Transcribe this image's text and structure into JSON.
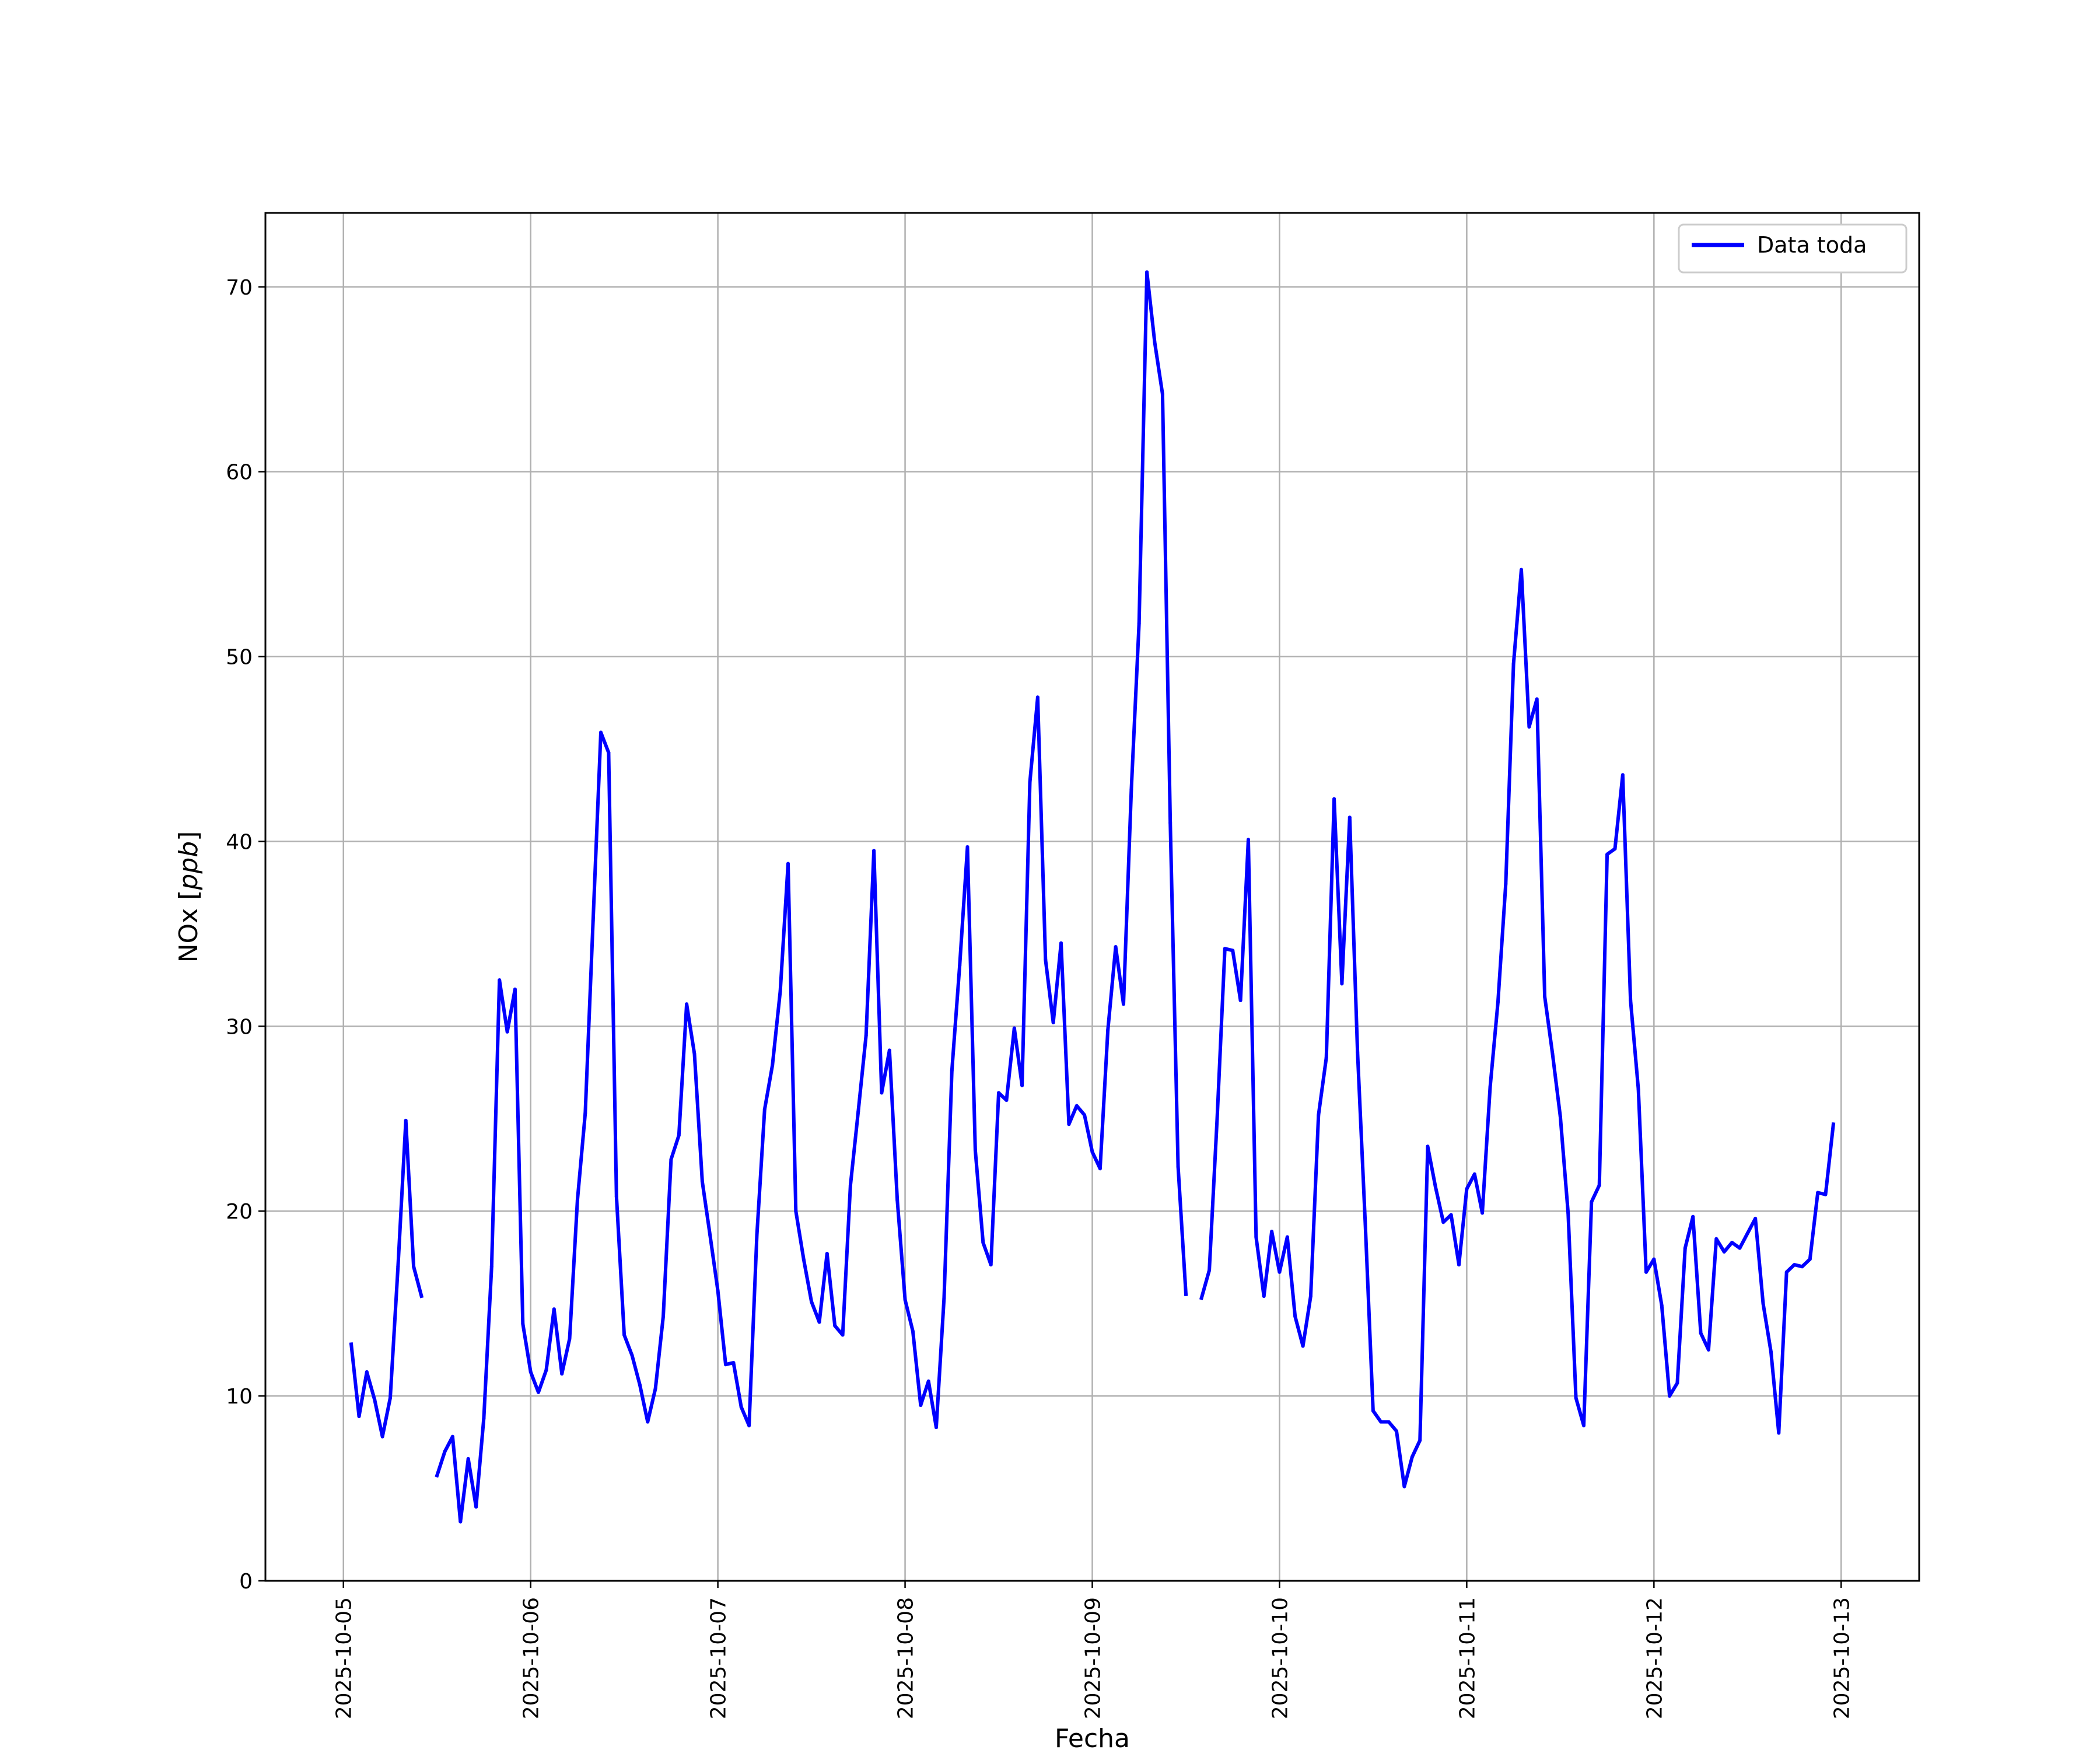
{
  "chart_data": {
    "type": "line",
    "xlabel": "Fecha",
    "ylabel": "NOx [ppb]",
    "ylabel_parts": {
      "main": "NOx [",
      "unit": "ppb",
      "end": "]"
    },
    "xlim": [
      "2025-10-04 14:00",
      "2025-10-13 10:00"
    ],
    "ylim": [
      0,
      74
    ],
    "x_tick_labels": [
      "2025-10-05",
      "2025-10-06",
      "2025-10-07",
      "2025-10-08",
      "2025-10-09",
      "2025-10-10",
      "2025-10-11",
      "2025-10-12",
      "2025-10-13"
    ],
    "y_ticks": [
      0,
      10,
      20,
      30,
      40,
      50,
      60,
      70
    ],
    "grid": true,
    "legend_position": "top-right",
    "line_color": "#0000ff",
    "series": [
      {
        "name": "Data toda",
        "points": [
          [
            "2025-10-05 01:00",
            12.8
          ],
          [
            "2025-10-05 02:00",
            8.9
          ],
          [
            "2025-10-05 03:00",
            11.3
          ],
          [
            "2025-10-05 04:00",
            9.8
          ],
          [
            "2025-10-05 05:00",
            7.8
          ],
          [
            "2025-10-05 06:00",
            9.9
          ],
          [
            "2025-10-05 07:00",
            17.0
          ],
          [
            "2025-10-05 08:00",
            24.9
          ],
          [
            "2025-10-05 09:00",
            17.0
          ],
          [
            "2025-10-05 10:00",
            15.4
          ],
          [
            "2025-10-05 11:00",
            null
          ],
          [
            "2025-10-05 12:00",
            5.7
          ],
          [
            "2025-10-05 13:00",
            7.0
          ],
          [
            "2025-10-05 14:00",
            7.8
          ],
          [
            "2025-10-05 15:00",
            3.2
          ],
          [
            "2025-10-05 16:00",
            6.6
          ],
          [
            "2025-10-05 17:00",
            4.0
          ],
          [
            "2025-10-05 18:00",
            8.8
          ],
          [
            "2025-10-05 19:00",
            17.0
          ],
          [
            "2025-10-05 20:00",
            32.5
          ],
          [
            "2025-10-05 21:00",
            29.7
          ],
          [
            "2025-10-05 22:00",
            32.0
          ],
          [
            "2025-10-05 23:00",
            13.9
          ],
          [
            "2025-10-06 00:00",
            11.3
          ],
          [
            "2025-10-06 01:00",
            10.2
          ],
          [
            "2025-10-06 02:00",
            11.4
          ],
          [
            "2025-10-06 03:00",
            14.7
          ],
          [
            "2025-10-06 04:00",
            11.2
          ],
          [
            "2025-10-06 05:00",
            13.1
          ],
          [
            "2025-10-06 06:00",
            20.6
          ],
          [
            "2025-10-06 07:00",
            25.3
          ],
          [
            "2025-10-06 08:00",
            35.7
          ],
          [
            "2025-10-06 09:00",
            45.9
          ],
          [
            "2025-10-06 10:00",
            44.8
          ],
          [
            "2025-10-06 11:00",
            20.8
          ],
          [
            "2025-10-06 12:00",
            13.3
          ],
          [
            "2025-10-06 13:00",
            12.2
          ],
          [
            "2025-10-06 14:00",
            10.6
          ],
          [
            "2025-10-06 15:00",
            8.6
          ],
          [
            "2025-10-06 16:00",
            10.4
          ],
          [
            "2025-10-06 17:00",
            14.3
          ],
          [
            "2025-10-06 18:00",
            22.8
          ],
          [
            "2025-10-06 19:00",
            24.1
          ],
          [
            "2025-10-06 20:00",
            31.2
          ],
          [
            "2025-10-06 21:00",
            28.5
          ],
          [
            "2025-10-06 22:00",
            21.6
          ],
          [
            "2025-10-06 23:00",
            18.7
          ],
          [
            "2025-10-07 00:00",
            15.7
          ],
          [
            "2025-10-07 01:00",
            11.7
          ],
          [
            "2025-10-07 02:00",
            11.8
          ],
          [
            "2025-10-07 03:00",
            9.4
          ],
          [
            "2025-10-07 04:00",
            8.4
          ],
          [
            "2025-10-07 05:00",
            18.7
          ],
          [
            "2025-10-07 06:00",
            25.5
          ],
          [
            "2025-10-07 07:00",
            27.9
          ],
          [
            "2025-10-07 08:00",
            31.9
          ],
          [
            "2025-10-07 09:00",
            38.8
          ],
          [
            "2025-10-07 10:00",
            20.0
          ],
          [
            "2025-10-07 11:00",
            17.4
          ],
          [
            "2025-10-07 12:00",
            15.1
          ],
          [
            "2025-10-07 13:00",
            14.0
          ],
          [
            "2025-10-07 14:00",
            17.7
          ],
          [
            "2025-10-07 15:00",
            13.8
          ],
          [
            "2025-10-07 16:00",
            13.3
          ],
          [
            "2025-10-07 17:00",
            21.4
          ],
          [
            "2025-10-07 18:00",
            25.4
          ],
          [
            "2025-10-07 19:00",
            29.5
          ],
          [
            "2025-10-07 20:00",
            39.5
          ],
          [
            "2025-10-07 21:00",
            26.4
          ],
          [
            "2025-10-07 22:00",
            28.7
          ],
          [
            "2025-10-07 23:00",
            20.6
          ],
          [
            "2025-10-08 00:00",
            15.2
          ],
          [
            "2025-10-08 01:00",
            13.5
          ],
          [
            "2025-10-08 02:00",
            9.5
          ],
          [
            "2025-10-08 03:00",
            10.8
          ],
          [
            "2025-10-08 04:00",
            8.3
          ],
          [
            "2025-10-08 05:00",
            15.3
          ],
          [
            "2025-10-08 06:00",
            27.6
          ],
          [
            "2025-10-08 07:00",
            33.3
          ],
          [
            "2025-10-08 08:00",
            39.7
          ],
          [
            "2025-10-08 09:00",
            23.3
          ],
          [
            "2025-10-08 10:00",
            18.3
          ],
          [
            "2025-10-08 11:00",
            17.1
          ],
          [
            "2025-10-08 12:00",
            26.4
          ],
          [
            "2025-10-08 13:00",
            26.0
          ],
          [
            "2025-10-08 14:00",
            29.9
          ],
          [
            "2025-10-08 15:00",
            26.8
          ],
          [
            "2025-10-08 16:00",
            43.2
          ],
          [
            "2025-10-08 17:00",
            47.8
          ],
          [
            "2025-10-08 18:00",
            33.6
          ],
          [
            "2025-10-08 19:00",
            30.2
          ],
          [
            "2025-10-08 20:00",
            34.5
          ],
          [
            "2025-10-08 21:00",
            24.7
          ],
          [
            "2025-10-08 22:00",
            25.7
          ],
          [
            "2025-10-08 23:00",
            25.2
          ],
          [
            "2025-10-09 00:00",
            23.2
          ],
          [
            "2025-10-09 01:00",
            22.3
          ],
          [
            "2025-10-09 02:00",
            29.8
          ],
          [
            "2025-10-09 03:00",
            34.3
          ],
          [
            "2025-10-09 04:00",
            31.2
          ],
          [
            "2025-10-09 05:00",
            42.8
          ],
          [
            "2025-10-09 06:00",
            51.8
          ],
          [
            "2025-10-09 07:00",
            70.8
          ],
          [
            "2025-10-09 08:00",
            67.0
          ],
          [
            "2025-10-09 09:00",
            64.2
          ],
          [
            "2025-10-09 10:00",
            41.0
          ],
          [
            "2025-10-09 11:00",
            22.4
          ],
          [
            "2025-10-09 12:00",
            15.5
          ],
          [
            "2025-10-09 13:00",
            null
          ],
          [
            "2025-10-09 14:00",
            15.3
          ],
          [
            "2025-10-09 15:00",
            16.8
          ],
          [
            "2025-10-09 16:00",
            25.0
          ],
          [
            "2025-10-09 17:00",
            34.2
          ],
          [
            "2025-10-09 18:00",
            34.1
          ],
          [
            "2025-10-09 19:00",
            31.4
          ],
          [
            "2025-10-09 20:00",
            40.1
          ],
          [
            "2025-10-09 21:00",
            18.6
          ],
          [
            "2025-10-09 22:00",
            15.4
          ],
          [
            "2025-10-09 23:00",
            18.9
          ],
          [
            "2025-10-10 00:00",
            16.7
          ],
          [
            "2025-10-10 01:00",
            18.6
          ],
          [
            "2025-10-10 02:00",
            14.3
          ],
          [
            "2025-10-10 03:00",
            12.7
          ],
          [
            "2025-10-10 04:00",
            15.4
          ],
          [
            "2025-10-10 05:00",
            25.2
          ],
          [
            "2025-10-10 06:00",
            28.3
          ],
          [
            "2025-10-10 07:00",
            42.3
          ],
          [
            "2025-10-10 08:00",
            32.3
          ],
          [
            "2025-10-10 09:00",
            41.3
          ],
          [
            "2025-10-10 10:00",
            28.6
          ],
          [
            "2025-10-10 11:00",
            19.3
          ],
          [
            "2025-10-10 12:00",
            9.2
          ],
          [
            "2025-10-10 13:00",
            8.6
          ],
          [
            "2025-10-10 14:00",
            8.6
          ],
          [
            "2025-10-10 15:00",
            8.1
          ],
          [
            "2025-10-10 16:00",
            5.1
          ],
          [
            "2025-10-10 17:00",
            6.7
          ],
          [
            "2025-10-10 18:00",
            7.6
          ],
          [
            "2025-10-10 19:00",
            23.5
          ],
          [
            "2025-10-10 20:00",
            21.3
          ],
          [
            "2025-10-10 21:00",
            19.4
          ],
          [
            "2025-10-10 22:00",
            19.8
          ],
          [
            "2025-10-10 23:00",
            17.1
          ],
          [
            "2025-10-11 00:00",
            21.2
          ],
          [
            "2025-10-11 01:00",
            22.0
          ],
          [
            "2025-10-11 02:00",
            19.9
          ],
          [
            "2025-10-11 03:00",
            26.7
          ],
          [
            "2025-10-11 04:00",
            31.3
          ],
          [
            "2025-10-11 05:00",
            37.7
          ],
          [
            "2025-10-11 06:00",
            49.6
          ],
          [
            "2025-10-11 07:00",
            54.7
          ],
          [
            "2025-10-11 08:00",
            46.2
          ],
          [
            "2025-10-11 09:00",
            47.7
          ],
          [
            "2025-10-11 10:00",
            31.6
          ],
          [
            "2025-10-11 11:00",
            28.5
          ],
          [
            "2025-10-11 12:00",
            25.1
          ],
          [
            "2025-10-11 13:00",
            19.9
          ],
          [
            "2025-10-11 14:00",
            9.9
          ],
          [
            "2025-10-11 15:00",
            8.4
          ],
          [
            "2025-10-11 16:00",
            20.5
          ],
          [
            "2025-10-11 17:00",
            21.4
          ],
          [
            "2025-10-11 18:00",
            39.3
          ],
          [
            "2025-10-11 19:00",
            39.6
          ],
          [
            "2025-10-11 20:00",
            43.6
          ],
          [
            "2025-10-11 21:00",
            31.4
          ],
          [
            "2025-10-11 22:00",
            26.6
          ],
          [
            "2025-10-11 23:00",
            16.7
          ],
          [
            "2025-10-12 00:00",
            17.4
          ],
          [
            "2025-10-12 01:00",
            14.9
          ],
          [
            "2025-10-12 02:00",
            10.0
          ],
          [
            "2025-10-12 03:00",
            10.7
          ],
          [
            "2025-10-12 04:00",
            18.0
          ],
          [
            "2025-10-12 05:00",
            19.7
          ],
          [
            "2025-10-12 06:00",
            13.4
          ],
          [
            "2025-10-12 07:00",
            12.5
          ],
          [
            "2025-10-12 08:00",
            18.5
          ],
          [
            "2025-10-12 09:00",
            17.8
          ],
          [
            "2025-10-12 10:00",
            18.3
          ],
          [
            "2025-10-12 11:00",
            18.0
          ],
          [
            "2025-10-12 12:00",
            18.8
          ],
          [
            "2025-10-12 13:00",
            19.6
          ],
          [
            "2025-10-12 14:00",
            15.0
          ],
          [
            "2025-10-12 15:00",
            12.4
          ],
          [
            "2025-10-12 16:00",
            8.0
          ],
          [
            "2025-10-12 17:00",
            16.7
          ],
          [
            "2025-10-12 18:00",
            17.1
          ],
          [
            "2025-10-12 19:00",
            17.0
          ],
          [
            "2025-10-12 20:00",
            17.4
          ],
          [
            "2025-10-12 21:00",
            21.0
          ],
          [
            "2025-10-12 22:00",
            20.9
          ],
          [
            "2025-10-12 23:00",
            24.7
          ]
        ]
      }
    ]
  }
}
